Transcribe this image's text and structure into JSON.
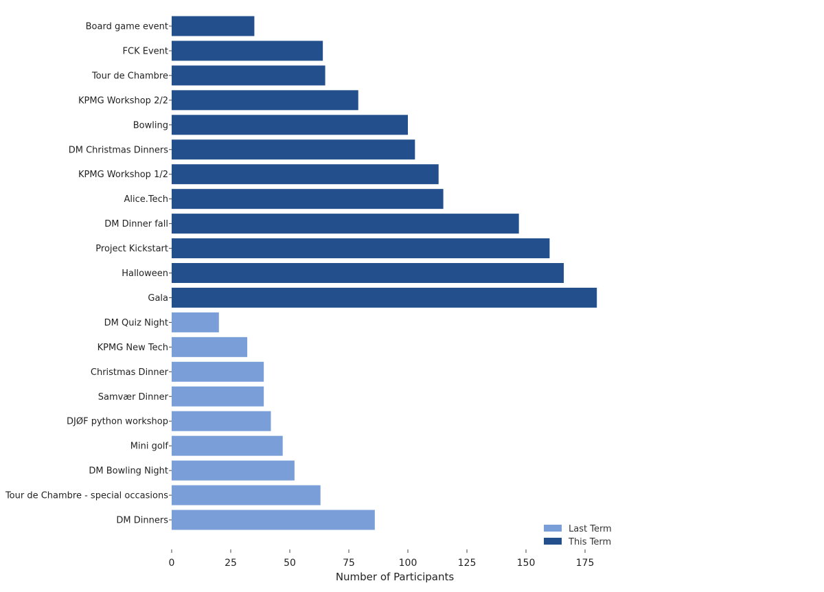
{
  "chart_data": {
    "type": "bar",
    "orientation": "horizontal",
    "xlabel": "Number of Participants",
    "ylabel": "",
    "xlim": [
      0,
      190
    ],
    "xticks": [
      0,
      25,
      50,
      75,
      100,
      125,
      150,
      175
    ],
    "legend_position": "bottom-right",
    "series": [
      {
        "name": "Last Term",
        "color": "#799ed8"
      },
      {
        "name": "This Term",
        "color": "#23508d"
      }
    ],
    "bars": [
      {
        "label": "Board game event",
        "value": 35,
        "series": "This Term"
      },
      {
        "label": "FCK Event",
        "value": 64,
        "series": "This Term"
      },
      {
        "label": "Tour de Chambre",
        "value": 65,
        "series": "This Term"
      },
      {
        "label": "KPMG Workshop 2/2",
        "value": 79,
        "series": "This Term"
      },
      {
        "label": "Bowling",
        "value": 100,
        "series": "This Term"
      },
      {
        "label": "DM Christmas Dinners",
        "value": 103,
        "series": "This Term"
      },
      {
        "label": "KPMG Workshop 1/2",
        "value": 113,
        "series": "This Term"
      },
      {
        "label": "Alice.Tech",
        "value": 115,
        "series": "This Term"
      },
      {
        "label": "DM Dinner fall",
        "value": 147,
        "series": "This Term"
      },
      {
        "label": "Project Kickstart",
        "value": 160,
        "series": "This Term"
      },
      {
        "label": "Halloween",
        "value": 166,
        "series": "This Term"
      },
      {
        "label": "Gala",
        "value": 180,
        "series": "This Term"
      },
      {
        "label": "DM Quiz Night",
        "value": 20,
        "series": "Last Term"
      },
      {
        "label": "KPMG New Tech",
        "value": 32,
        "series": "Last Term"
      },
      {
        "label": "Christmas Dinner",
        "value": 39,
        "series": "Last Term"
      },
      {
        "label": "Samvær Dinner",
        "value": 39,
        "series": "Last Term"
      },
      {
        "label": "DJØF python workshop",
        "value": 42,
        "series": "Last Term"
      },
      {
        "label": "Mini golf",
        "value": 47,
        "series": "Last Term"
      },
      {
        "label": "DM Bowling Night",
        "value": 52,
        "series": "Last Term"
      },
      {
        "label": "Tour de Chambre - special occasions",
        "value": 63,
        "series": "Last Term"
      },
      {
        "label": "DM Dinners",
        "value": 86,
        "series": "Last Term"
      }
    ]
  }
}
